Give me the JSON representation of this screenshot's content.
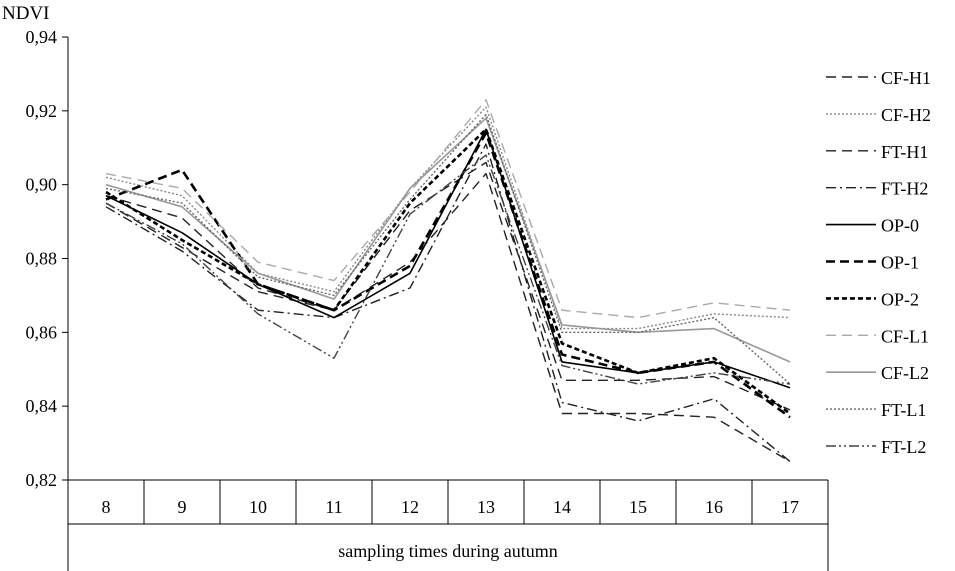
{
  "chart_data": {
    "type": "line",
    "ylabel": "NDVI",
    "xlabel": "sampling times during autumn",
    "categories": [
      "8",
      "9",
      "10",
      "11",
      "12",
      "13",
      "14",
      "15",
      "16",
      "17"
    ],
    "ylim": [
      0.82,
      0.94
    ],
    "yticks": [
      "0,82",
      "0,84",
      "0,86",
      "0,88",
      "0,90",
      "0,92",
      "0,94"
    ],
    "grid": false,
    "legend": "right",
    "series": [
      {
        "name": "CF-H1",
        "color": "#222222",
        "dash": "long-dash",
        "values": [
          0.897,
          0.891,
          0.872,
          0.866,
          0.879,
          0.903,
          0.838,
          0.838,
          0.837,
          0.825
        ]
      },
      {
        "name": "CF-H2",
        "color": "#888888",
        "dash": "dot",
        "values": [
          0.902,
          0.897,
          0.876,
          0.871,
          0.899,
          0.921,
          0.861,
          0.861,
          0.865,
          0.864
        ]
      },
      {
        "name": "FT-H1",
        "color": "#222222",
        "dash": "long-dash",
        "values": [
          0.895,
          0.883,
          0.871,
          0.866,
          0.893,
          0.906,
          0.847,
          0.847,
          0.848,
          0.839
        ]
      },
      {
        "name": "FT-H2",
        "color": "#222222",
        "dash": "dash-dot",
        "values": [
          0.894,
          0.882,
          0.866,
          0.864,
          0.872,
          0.911,
          0.841,
          0.836,
          0.842,
          0.825
        ]
      },
      {
        "name": "OP-0",
        "color": "#000000",
        "dash": "solid",
        "values": [
          0.897,
          0.887,
          0.873,
          0.864,
          0.876,
          0.915,
          0.852,
          0.849,
          0.852,
          0.845
        ]
      },
      {
        "name": "OP-1",
        "color": "#000000",
        "dash": "bold-dash",
        "values": [
          0.896,
          0.904,
          0.873,
          0.866,
          0.878,
          0.914,
          0.854,
          0.849,
          0.852,
          0.837
        ]
      },
      {
        "name": "OP-2",
        "color": "#000000",
        "dash": "bold-short-dash",
        "values": [
          0.898,
          0.885,
          0.873,
          0.866,
          0.895,
          0.915,
          0.857,
          0.849,
          0.853,
          0.838
        ]
      },
      {
        "name": "CF-L1",
        "color": "#aaaaaa",
        "dash": "long-dash",
        "values": [
          0.903,
          0.899,
          0.879,
          0.874,
          0.898,
          0.923,
          0.866,
          0.864,
          0.868,
          0.866
        ]
      },
      {
        "name": "CF-L2",
        "color": "#999999",
        "dash": "solid",
        "values": [
          0.9,
          0.894,
          0.876,
          0.869,
          0.899,
          0.918,
          0.862,
          0.86,
          0.861,
          0.852
        ]
      },
      {
        "name": "FT-L1",
        "color": "#666666",
        "dash": "dot",
        "values": [
          0.899,
          0.895,
          0.875,
          0.87,
          0.896,
          0.919,
          0.86,
          0.86,
          0.864,
          0.846
        ]
      },
      {
        "name": "FT-L2",
        "color": "#444444",
        "dash": "dash-dot-dot",
        "values": [
          0.895,
          0.884,
          0.865,
          0.853,
          0.892,
          0.908,
          0.851,
          0.846,
          0.849,
          0.846
        ]
      }
    ]
  }
}
